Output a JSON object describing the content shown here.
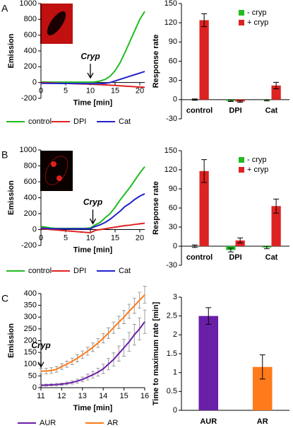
{
  "chart_data": [
    {
      "type": "line",
      "panel_label": "A",
      "ylabel": "Emission",
      "xlabel": "Time [min]",
      "x": [
        0,
        1,
        2,
        3,
        4,
        5,
        6,
        7,
        8,
        9,
        10,
        11,
        12,
        13,
        14,
        15,
        16,
        17,
        18,
        19,
        20,
        21
      ],
      "series": [
        {
          "name": "control",
          "color": "#22bb22",
          "values": [
            8,
            6,
            5,
            5,
            5,
            5,
            5,
            5,
            5,
            5,
            5,
            8,
            20,
            40,
            80,
            150,
            250,
            380,
            520,
            660,
            800,
            900
          ]
        },
        {
          "name": "DPI",
          "color": "#dd2222",
          "values": [
            0,
            -3,
            -5,
            -7,
            -9,
            -11,
            -13,
            -15,
            -17,
            -19,
            -21,
            -24,
            -27,
            -30,
            -33,
            -37,
            -41,
            -45,
            -49,
            -53,
            -57,
            -60
          ]
        },
        {
          "name": "Cat",
          "color": "#2222cc",
          "values": [
            -10,
            -10,
            -11,
            -11,
            -12,
            -12,
            -12,
            -13,
            -13,
            -13,
            -14,
            -14,
            -13,
            -10,
            0,
            20,
            40,
            60,
            80,
            100,
            120,
            140
          ]
        }
      ],
      "xlim": [
        0,
        21
      ],
      "ylim": [
        -200,
        1000
      ],
      "xticks": [
        0,
        5,
        10,
        15,
        20
      ],
      "yticks": [
        -200,
        0,
        200,
        400,
        600,
        800,
        1000
      ],
      "annotations": [
        {
          "text": "Cryp",
          "x": 10
        }
      ]
    },
    {
      "type": "bar",
      "ylabel": "Response rate",
      "categories": [
        "control",
        "DPI",
        "Cat"
      ],
      "series": [
        {
          "name": "- cryp",
          "color": "#22bb22",
          "values": [
            0,
            -2,
            -1
          ],
          "errors": [
            1,
            1,
            1
          ]
        },
        {
          "name": "+ cryp",
          "color": "#dd2222",
          "values": [
            124,
            -3,
            22
          ],
          "errors": [
            10,
            1,
            5
          ]
        }
      ],
      "ylim": [
        -30,
        150
      ],
      "yticks": [
        -30,
        0,
        30,
        60,
        90,
        120,
        150
      ]
    },
    {
      "type": "line",
      "panel_label": "B",
      "ylabel": "Emission",
      "xlabel": "Time [min]",
      "x": [
        0,
        1,
        2,
        3,
        4,
        5,
        6,
        7,
        8,
        9,
        10,
        11,
        12,
        13,
        14,
        15,
        16,
        17,
        18,
        19,
        20,
        21
      ],
      "series": [
        {
          "name": "control",
          "color": "#22bb22",
          "values": [
            40,
            30,
            20,
            15,
            15,
            15,
            15,
            15,
            15,
            15,
            20,
            60,
            90,
            150,
            200,
            280,
            370,
            450,
            530,
            620,
            710,
            790
          ]
        },
        {
          "name": "DPI",
          "color": "#dd2222",
          "values": [
            10,
            5,
            0,
            -5,
            -10,
            -15,
            -20,
            -25,
            -30,
            -35,
            -40,
            -10,
            0,
            10,
            20,
            30,
            40,
            50,
            55,
            65,
            72,
            80
          ]
        },
        {
          "name": "Cat",
          "color": "#2222cc",
          "values": [
            20,
            15,
            10,
            10,
            10,
            10,
            10,
            10,
            10,
            10,
            10,
            40,
            60,
            90,
            130,
            180,
            230,
            290,
            330,
            380,
            420,
            450
          ]
        }
      ],
      "xlim": [
        0,
        21
      ],
      "ylim": [
        -200,
        1000
      ],
      "xticks": [
        0,
        5,
        10,
        15,
        20
      ],
      "yticks": [
        -200,
        0,
        200,
        400,
        600,
        800,
        1000
      ],
      "annotations": [
        {
          "text": "Cryp",
          "x": 10.5
        }
      ]
    },
    {
      "type": "bar",
      "ylabel": "Response rate",
      "categories": [
        "control",
        "DPI",
        "Cat"
      ],
      "series": [
        {
          "name": "- cryp",
          "color": "#22bb22",
          "values": [
            0,
            -6,
            -2
          ],
          "errors": [
            2,
            3,
            2
          ]
        },
        {
          "name": "+ cryp",
          "color": "#dd2222",
          "values": [
            118,
            9,
            63
          ],
          "errors": [
            18,
            4,
            11
          ]
        }
      ],
      "ylim": [
        -30,
        150
      ],
      "yticks": [
        -30,
        0,
        30,
        60,
        90,
        120,
        150
      ]
    },
    {
      "type": "line",
      "panel_label": "C",
      "ylabel": "Emission",
      "xlabel": "Time [min]",
      "x": [
        11,
        11.25,
        11.5,
        11.75,
        12,
        12.25,
        12.5,
        12.75,
        13,
        13.25,
        13.5,
        13.75,
        14,
        14.25,
        14.5,
        14.75,
        15,
        15.25,
        15.5,
        15.75,
        16
      ],
      "series": [
        {
          "name": "AUR",
          "color": "#6a1fa8",
          "values": [
            10,
            11,
            12,
            13,
            15,
            18,
            22,
            28,
            35,
            45,
            55,
            66,
            80,
            100,
            120,
            145,
            170,
            195,
            225,
            250,
            280
          ],
          "errors": [
            4,
            4,
            4,
            5,
            5,
            6,
            7,
            8,
            10,
            12,
            14,
            17,
            20,
            24,
            28,
            32,
            36,
            40,
            44,
            47,
            50
          ]
        },
        {
          "name": "AR",
          "color": "#ff7a1a",
          "values": [
            70,
            71,
            73,
            78,
            90,
            100,
            112,
            125,
            140,
            155,
            172,
            190,
            210,
            232,
            255,
            278,
            300,
            325,
            348,
            372,
            395
          ],
          "errors": [
            12,
            12,
            12,
            12,
            12,
            13,
            14,
            15,
            16,
            17,
            18,
            19,
            20,
            22,
            24,
            26,
            28,
            30,
            32,
            34,
            36
          ]
        }
      ],
      "xlim": [
        11,
        16
      ],
      "ylim": [
        0,
        400
      ],
      "xticks": [
        11,
        12,
        13,
        14,
        15,
        16
      ],
      "yticks": [
        0,
        50,
        100,
        150,
        200,
        250,
        300,
        350,
        400
      ],
      "annotations": [
        {
          "text": "Cryp",
          "x": 11
        }
      ]
    },
    {
      "type": "bar",
      "ylabel": "Time to maximum rate [min]",
      "categories": [
        "AUR",
        "AR"
      ],
      "values": [
        2.5,
        1.15
      ],
      "errors": [
        0.22,
        0.32
      ],
      "colors": [
        "#6a1fa8",
        "#ff7a1a"
      ],
      "ylim": [
        0,
        3
      ],
      "yticks": [
        0,
        0.5,
        1,
        1.5,
        2,
        2.5,
        3
      ]
    }
  ]
}
